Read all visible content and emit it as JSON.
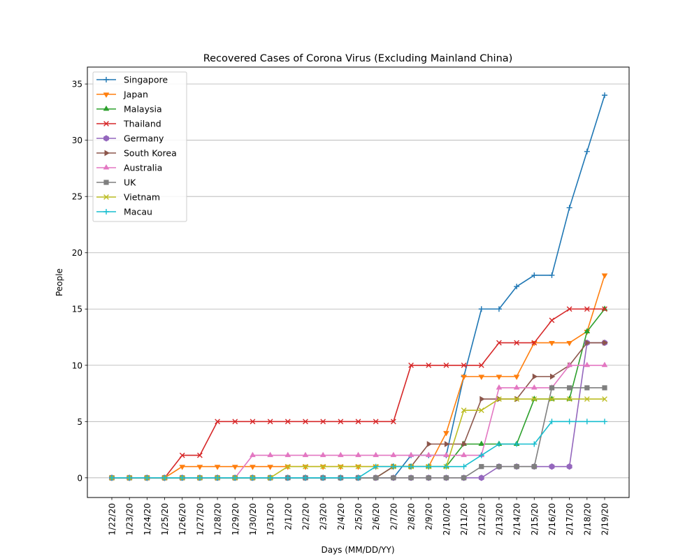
{
  "chart_data": {
    "type": "line",
    "title": "Recovered Cases of Corona Virus (Excluding Mainland China)",
    "xlabel": "Days (MM/DD/YY)",
    "ylabel": "People",
    "ylim": [
      -1.75,
      36.5
    ],
    "yticks": [
      0,
      5,
      10,
      15,
      20,
      25,
      30,
      35
    ],
    "grid": "horizontal",
    "legend_position": "top-left",
    "x": [
      "1/22/20",
      "1/23/20",
      "1/24/20",
      "1/25/20",
      "1/26/20",
      "1/27/20",
      "1/28/20",
      "1/29/20",
      "1/30/20",
      "1/31/20",
      "2/1/20",
      "2/2/20",
      "2/3/20",
      "2/4/20",
      "2/5/20",
      "2/6/20",
      "2/7/20",
      "2/8/20",
      "2/9/20",
      "2/10/20",
      "2/11/20",
      "2/12/20",
      "2/13/20",
      "2/14/20",
      "2/15/20",
      "2/16/20",
      "2/17/20",
      "2/18/20",
      "2/19/20"
    ],
    "series": [
      {
        "name": "Singapore",
        "color": "#1f77b4",
        "marker": "plus",
        "values": [
          0,
          0,
          0,
          0,
          0,
          0,
          0,
          0,
          0,
          0,
          0,
          0,
          0,
          0,
          0,
          0,
          0,
          2,
          2,
          2,
          9,
          15,
          15,
          17,
          18,
          18,
          24,
          29,
          34
        ]
      },
      {
        "name": "Japan",
        "color": "#ff7f0e",
        "marker": "tri-down",
        "values": [
          0,
          0,
          0,
          0,
          1,
          1,
          1,
          1,
          1,
          1,
          1,
          1,
          1,
          1,
          1,
          1,
          1,
          1,
          1,
          4,
          9,
          9,
          9,
          9,
          12,
          12,
          12,
          13,
          18
        ]
      },
      {
        "name": "Malaysia",
        "color": "#2ca02c",
        "marker": "tri-up",
        "values": [
          0,
          0,
          0,
          0,
          0,
          0,
          0,
          0,
          0,
          0,
          0,
          0,
          0,
          0,
          0,
          0,
          1,
          1,
          1,
          1,
          3,
          3,
          3,
          3,
          7,
          7,
          7,
          13,
          15
        ]
      },
      {
        "name": "Thailand",
        "color": "#d62728",
        "marker": "x",
        "values": [
          0,
          0,
          0,
          0,
          2,
          2,
          5,
          5,
          5,
          5,
          5,
          5,
          5,
          5,
          5,
          5,
          5,
          10,
          10,
          10,
          10,
          10,
          12,
          12,
          12,
          14,
          15,
          15,
          15
        ]
      },
      {
        "name": "Germany",
        "color": "#9467bd",
        "marker": "hexagon",
        "values": [
          0,
          0,
          0,
          0,
          0,
          0,
          0,
          0,
          0,
          0,
          0,
          0,
          0,
          0,
          0,
          0,
          0,
          0,
          0,
          0,
          0,
          0,
          1,
          1,
          1,
          1,
          1,
          12,
          12
        ]
      },
      {
        "name": "South Korea",
        "color": "#8c564b",
        "marker": "tri-right",
        "values": [
          0,
          0,
          0,
          0,
          0,
          0,
          0,
          0,
          0,
          0,
          0,
          0,
          0,
          0,
          0,
          0,
          1,
          1,
          3,
          3,
          3,
          7,
          7,
          7,
          9,
          9,
          10,
          12,
          12
        ]
      },
      {
        "name": "Australia",
        "color": "#e377c2",
        "marker": "tri-up",
        "values": [
          0,
          0,
          0,
          0,
          0,
          0,
          0,
          0,
          2,
          2,
          2,
          2,
          2,
          2,
          2,
          2,
          2,
          2,
          2,
          2,
          2,
          2,
          8,
          8,
          8,
          8,
          10,
          10,
          10
        ]
      },
      {
        "name": "UK",
        "color": "#7f7f7f",
        "marker": "square",
        "values": [
          0,
          0,
          0,
          0,
          0,
          0,
          0,
          0,
          0,
          0,
          0,
          0,
          0,
          0,
          0,
          0,
          0,
          0,
          0,
          0,
          0,
          1,
          1,
          1,
          1,
          8,
          8,
          8,
          8
        ]
      },
      {
        "name": "Vietnam",
        "color": "#bcbd22",
        "marker": "x",
        "values": [
          0,
          0,
          0,
          0,
          0,
          0,
          0,
          0,
          0,
          0,
          1,
          1,
          1,
          1,
          1,
          1,
          1,
          1,
          1,
          1,
          6,
          6,
          7,
          7,
          7,
          7,
          7,
          7,
          7
        ]
      },
      {
        "name": "Macau",
        "color": "#17becf",
        "marker": "plus",
        "values": [
          0,
          0,
          0,
          0,
          0,
          0,
          0,
          0,
          0,
          0,
          0,
          0,
          0,
          0,
          0,
          1,
          1,
          1,
          1,
          1,
          1,
          2,
          3,
          3,
          3,
          5,
          5,
          5,
          5
        ]
      }
    ]
  }
}
